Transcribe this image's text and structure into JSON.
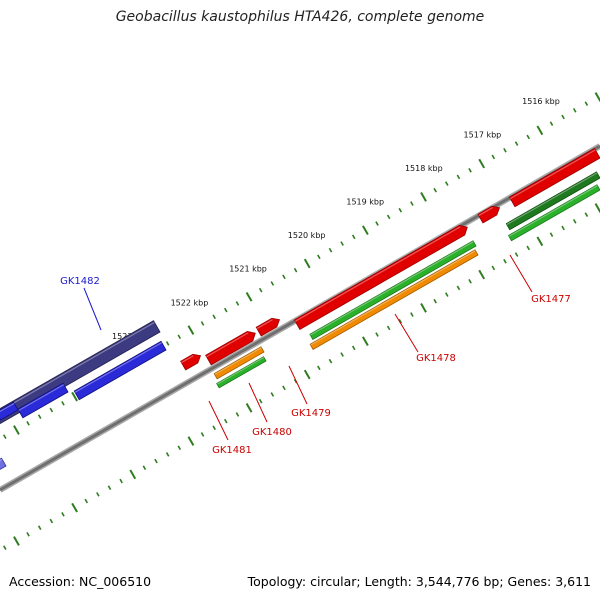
{
  "title": "Geobacillus kaustophilus HTA426, complete genome",
  "footer": {
    "accession": "Accession: NC_006510",
    "summary": "Topology: circular; Length: 3,544,776 bp; Genes: 3,611"
  },
  "colors": {
    "ruler": "#2e7d1e",
    "backbone": "#888888",
    "forward_cds": "#2a2ad8",
    "forward_dark": "#3c3a80",
    "reverse_cds": "#e00000",
    "rna_green": "#2bb02b",
    "rna_dark_green": "#1f7a1f",
    "rna_orange": "#f08a00",
    "label_forward": "#1a1acc",
    "label_reverse": "#cc0000"
  },
  "kbp_ticks": [
    {
      "label": "1516 kbp",
      "value": 1516
    },
    {
      "label": "1517 kbp",
      "value": 1517
    },
    {
      "label": "1518 kbp",
      "value": 1518
    },
    {
      "label": "1519 kbp",
      "value": 1519
    },
    {
      "label": "1520 kbp",
      "value": 1520
    },
    {
      "label": "1521 kbp",
      "value": 1521
    },
    {
      "label": "1522 kbp",
      "value": 1522
    },
    {
      "label": "1523 kbp",
      "value": 1523
    }
  ],
  "genes": [
    {
      "name": "GK1477",
      "strand": "reverse"
    },
    {
      "name": "GK1478",
      "strand": "reverse"
    },
    {
      "name": "GK1479",
      "strand": "reverse"
    },
    {
      "name": "GK1480",
      "strand": "reverse"
    },
    {
      "name": "GK1481",
      "strand": "reverse"
    },
    {
      "name": "GK1482",
      "strand": "forward"
    }
  ]
}
